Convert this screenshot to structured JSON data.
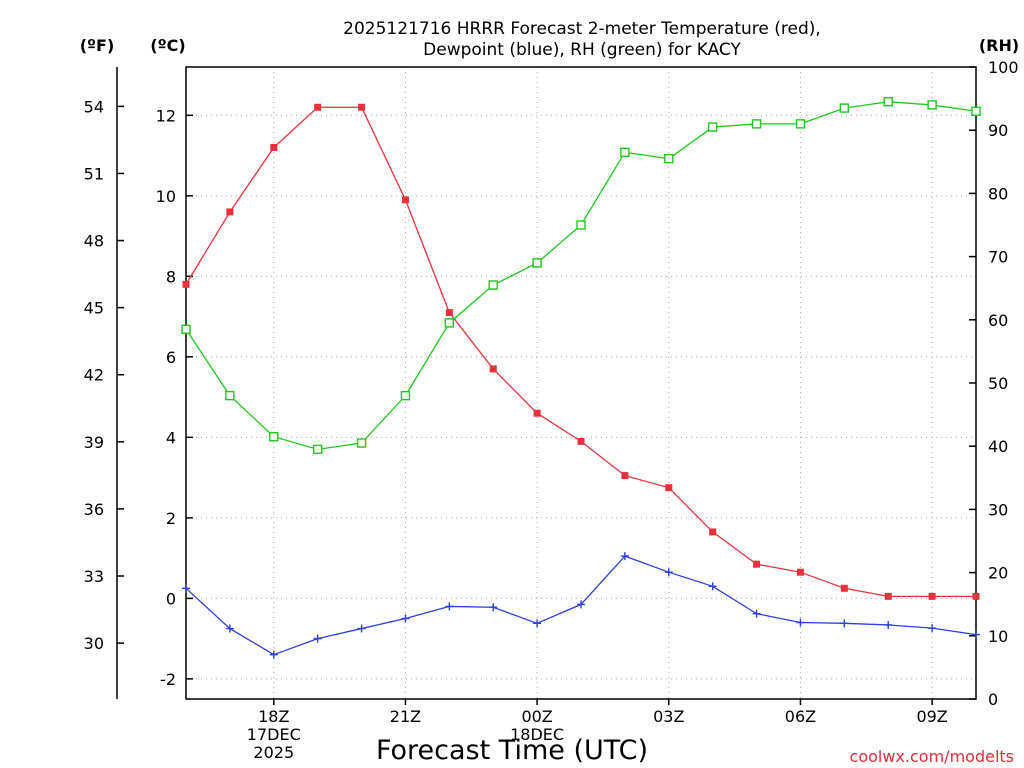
{
  "chart_data": {
    "type": "line",
    "title": "2025121716 HRRR Forecast 2-meter Temperature (red),",
    "subtitle": "Dewpoint (blue), RH (green) for KACY",
    "xlabel": "Forecast Time (UTC)",
    "credit": "coolwx.com/modelts",
    "x_hours": [
      16,
      17,
      18,
      19,
      20,
      21,
      22,
      23,
      24,
      25,
      26,
      27,
      28,
      29,
      30,
      31,
      32,
      33,
      34
    ],
    "x_ticks": [
      {
        "hour": 18,
        "lines": [
          "18Z",
          "17DEC",
          "2025"
        ]
      },
      {
        "hour": 21,
        "lines": [
          "21Z"
        ]
      },
      {
        "hour": 24,
        "lines": [
          "00Z",
          "18DEC"
        ]
      },
      {
        "hour": 27,
        "lines": [
          "03Z"
        ]
      },
      {
        "hour": 30,
        "lines": [
          "06Z"
        ]
      },
      {
        "hour": 33,
        "lines": [
          "09Z"
        ]
      }
    ],
    "xlim": [
      16,
      34
    ],
    "axes": {
      "celsius": {
        "unit_label": "(ºC)",
        "ylim": [
          -2.5,
          13.2
        ],
        "ticks": [
          "-2",
          "0",
          "2",
          "4",
          "6",
          "8",
          "10",
          "12"
        ]
      },
      "fahrenheit": {
        "unit_label": "(ºF)",
        "ticks": [
          "30",
          "33",
          "36",
          "39",
          "42",
          "45",
          "48",
          "51",
          "54"
        ]
      },
      "rh": {
        "unit_label": "(RH)",
        "ylim": [
          0,
          100
        ],
        "ticks": [
          "0",
          "10",
          "20",
          "30",
          "40",
          "50",
          "60",
          "70",
          "80",
          "90",
          "100"
        ]
      }
    },
    "series": [
      {
        "name": "Temperature",
        "axis": "celsius",
        "color": "#e8313b",
        "marker": "filled-square",
        "values": [
          7.8,
          9.6,
          11.2,
          12.2,
          12.2,
          9.9,
          7.1,
          5.7,
          4.6,
          3.9,
          3.05,
          2.75,
          1.65,
          0.85,
          0.65,
          0.25,
          0.05,
          0.05,
          0.05
        ]
      },
      {
        "name": "Dewpoint",
        "axis": "celsius",
        "color": "#2b3ee0",
        "marker": "plus",
        "values": [
          0.25,
          -0.75,
          -1.4,
          -1.0,
          -0.75,
          -0.5,
          -0.2,
          -0.22,
          -0.62,
          -0.15,
          1.05,
          0.65,
          0.3,
          -0.38,
          -0.6,
          -0.62,
          -0.66,
          -0.74,
          -0.9
        ]
      },
      {
        "name": "RH",
        "axis": "rh",
        "color": "#1ec81e",
        "marker": "open-square",
        "values": [
          58.5,
          48,
          41.5,
          39.5,
          40.5,
          48,
          59.5,
          65.5,
          69,
          75,
          86.5,
          85.5,
          90.5,
          91,
          91,
          93.5,
          94.5,
          94,
          93
        ]
      }
    ]
  }
}
